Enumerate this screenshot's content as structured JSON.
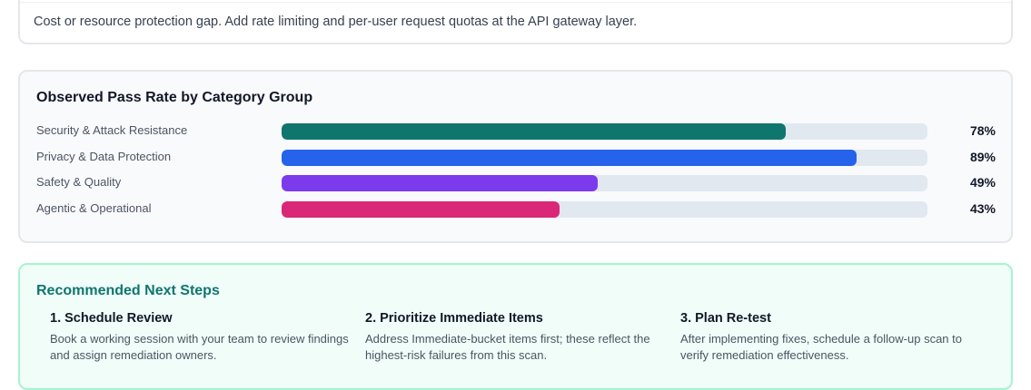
{
  "risk_note": {
    "text": "Cost or resource protection gap. Add rate limiting and per-user request quotas at the API gateway layer."
  },
  "pass_rate": {
    "title": "Observed Pass Rate by Category Group",
    "groups": [
      {
        "label": "Security & Attack Resistance",
        "value_text": "78%",
        "value": 78,
        "color": "#0f766e"
      },
      {
        "label": "Privacy & Data Protection",
        "value_text": "89%",
        "value": 89,
        "color": "#2563eb"
      },
      {
        "label": "Safety & Quality",
        "value_text": "49%",
        "value": 49,
        "color": "#7c3aed"
      },
      {
        "label": "Agentic & Operational",
        "value_text": "43%",
        "value": 43,
        "color": "#db2777"
      }
    ]
  },
  "next_steps": {
    "title": "Recommended Next Steps",
    "steps": [
      {
        "title": "1. Schedule Review",
        "description": "Book a working session with your team to review findings and assign remediation owners."
      },
      {
        "title": "2. Prioritize Immediate Items",
        "description": "Address Immediate-bucket items first; these reflect the highest-risk failures from this scan."
      },
      {
        "title": "3. Plan Re-test",
        "description": "After implementing fixes, schedule a follow-up scan to verify remediation effectiveness."
      }
    ]
  }
}
